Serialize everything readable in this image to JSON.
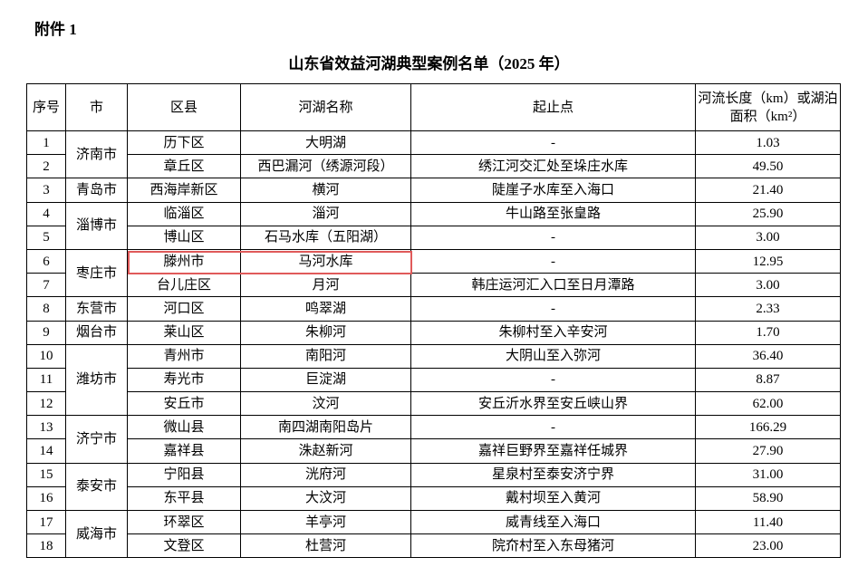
{
  "header": {
    "attachment": "附件 1",
    "title": "山东省效益河湖典型案例名单（2025 年）"
  },
  "table": {
    "columns": [
      "序号",
      "市",
      "区县",
      "河湖名称",
      "起止点",
      "河流长度（km）或湖泊面积（km²）"
    ],
    "rows": [
      [
        "1",
        "济南市",
        "历下区",
        "大明湖",
        "-",
        "1.03"
      ],
      [
        "2",
        null,
        "章丘区",
        "西巴漏河（绣源河段）",
        "绣江河交汇处至垛庄水库",
        "49.50"
      ],
      [
        "3",
        "青岛市",
        "西海岸新区",
        "横河",
        "陡崖子水库至入海口",
        "21.40"
      ],
      [
        "4",
        "淄博市",
        "临淄区",
        "淄河",
        "牛山路至张皇路",
        "25.90"
      ],
      [
        "5",
        null,
        "博山区",
        "石马水库（五阳湖）",
        "-",
        "3.00"
      ],
      [
        "6",
        "枣庄市",
        "滕州市",
        "马河水库",
        "-",
        "12.95"
      ],
      [
        "7",
        null,
        "台儿庄区",
        "月河",
        "韩庄运河汇入口至日月潭路",
        "3.00"
      ],
      [
        "8",
        "东营市",
        "河口区",
        "鸣翠湖",
        "-",
        "2.33"
      ],
      [
        "9",
        "烟台市",
        "莱山区",
        "朱柳河",
        "朱柳村至入辛安河",
        "1.70"
      ],
      [
        "10",
        "潍坊市",
        "青州市",
        "南阳河",
        "大阴山至入弥河",
        "36.40"
      ],
      [
        "11",
        null,
        "寿光市",
        "巨淀湖",
        "-",
        "8.87"
      ],
      [
        "12",
        null,
        "安丘市",
        "汶河",
        "安丘沂水界至安丘峡山界",
        "62.00"
      ],
      [
        "13",
        "济宁市",
        "微山县",
        "南四湖南阳岛片",
        "-",
        "166.29"
      ],
      [
        "14",
        null,
        "嘉祥县",
        "洙赵新河",
        "嘉祥巨野界至嘉祥任城界",
        "27.90"
      ],
      [
        "15",
        "泰安市",
        "宁阳县",
        "洸府河",
        "星泉村至泰安济宁界",
        "31.00"
      ],
      [
        "16",
        null,
        "东平县",
        "大汶河",
        "戴村坝至入黄河",
        "58.90"
      ],
      [
        "17",
        "威海市",
        "环翠区",
        "羊亭河",
        "威青线至入海口",
        "11.40"
      ],
      [
        "18",
        null,
        "文登区",
        "杜营河",
        "院夼村至入东母猪河",
        "23.00"
      ]
    ]
  }
}
